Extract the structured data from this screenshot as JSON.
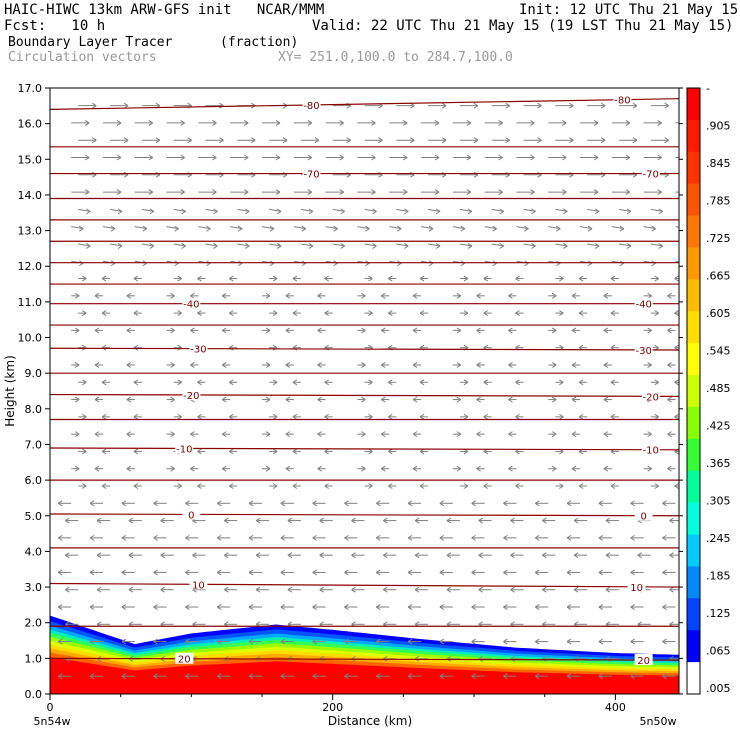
{
  "header": {
    "line1_left": "HAIC-HIWC 13km ARW-GFS init   NCAR/MMM",
    "line1_right": "Init: 12 UTC Thu 21 May 15",
    "line2_left": "Fcst:   10 h",
    "line2_right": "Valid: 22 UTC Thu 21 May 15 (19 LST Thu 21 May 15)",
    "field_name": "Boundary Layer Tracer",
    "field_units": "(fraction)",
    "overlay_name": "Circulation vectors",
    "section_coords": "XY= 251.0,100.0 to 284.7,100.0"
  },
  "chart_data": {
    "type": "heatmap",
    "xlabel": "Distance (km)",
    "ylabel": "Height (km)",
    "xlim": [
      0,
      445
    ],
    "ylim": [
      0,
      17
    ],
    "x_ticks": [
      {
        "value": 0,
        "label": "0"
      },
      {
        "value": 200,
        "label": "200"
      },
      {
        "value": 400,
        "label": "400"
      }
    ],
    "y_ticks": [
      "0.0",
      "1.0",
      "2.0",
      "3.0",
      "4.0",
      "5.0",
      "6.0",
      "7.0",
      "8.0",
      "9.0",
      "10.0",
      "11.0",
      "12.0",
      "13.0",
      "14.0",
      "15.0",
      "16.0",
      "17.0"
    ],
    "x_endpoint_labels": {
      "left": "5n54w",
      "right": "5n50w"
    },
    "boundary_layer_top_km": [
      {
        "x": 0,
        "top": 2.2
      },
      {
        "x": 30,
        "top": 1.8
      },
      {
        "x": 60,
        "top": 1.4
      },
      {
        "x": 100,
        "top": 1.7
      },
      {
        "x": 160,
        "top": 1.95
      },
      {
        "x": 200,
        "top": 1.8
      },
      {
        "x": 260,
        "top": 1.55
      },
      {
        "x": 330,
        "top": 1.3
      },
      {
        "x": 400,
        "top": 1.15
      },
      {
        "x": 445,
        "top": 1.1
      }
    ],
    "colorbar": {
      "labels": [
        "-",
        ".905",
        ".845",
        ".785",
        ".725",
        ".665",
        ".605",
        ".545",
        ".485",
        ".425",
        ".365",
        ".305",
        ".245",
        ".185",
        ".125",
        ".065",
        ".005"
      ],
      "colors": [
        "#ff0000",
        "#ff1a00",
        "#ff3300",
        "#ff5500",
        "#ff7700",
        "#ff9900",
        "#ffbb00",
        "#ffdd00",
        "#ffff00",
        "#ccff00",
        "#88ff00",
        "#33ff33",
        "#00ff99",
        "#00ffdd",
        "#00ccff",
        "#0088ff",
        "#0044ff",
        "#0000ff",
        "#ffffff"
      ]
    },
    "temperature_contours": [
      {
        "value": "20",
        "height_left": 1.0,
        "height_right": 0.95,
        "label_x": 95,
        "label_x2": 420
      },
      {
        "value": "10",
        "height_left": 3.1,
        "height_right": 3.0,
        "label_x": 105,
        "label_x2": 415
      },
      {
        "value": "0",
        "height_left": 5.05,
        "height_right": 5.0,
        "label_x": 100,
        "label_x2": 420
      },
      {
        "value": "-10",
        "height_left": 6.9,
        "height_right": 6.85,
        "label_x": 95,
        "label_x2": 425
      },
      {
        "value": "-20",
        "height_left": 8.4,
        "height_right": 8.35,
        "label_x": 100,
        "label_x2": 425
      },
      {
        "value": "-30",
        "height_left": 9.7,
        "height_right": 9.65,
        "label_x": 105,
        "label_x2": 420
      },
      {
        "value": "-40",
        "height_left": 10.95,
        "height_right": 10.95,
        "label_x": 100,
        "label_x2": 420
      },
      {
        "value": "-70",
        "height_left": 14.6,
        "height_right": 14.6,
        "label_x": 185,
        "label_x2": 425
      },
      {
        "value": "-80",
        "height_left": 16.4,
        "height_right": 16.7,
        "label_x": 185,
        "label_x2": 405
      }
    ],
    "unlabeled_contour_heights": [
      1.9,
      4.1,
      6.0,
      7.7,
      9.0,
      10.35,
      11.5,
      12.1,
      12.7,
      13.3,
      13.9,
      15.35
    ]
  }
}
